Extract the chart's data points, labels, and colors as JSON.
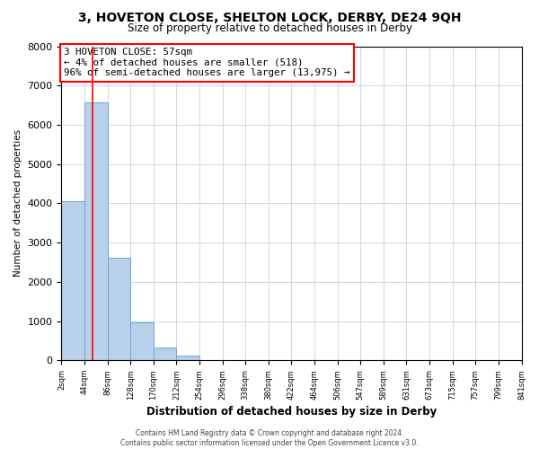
{
  "title": "3, HOVETON CLOSE, SHELTON LOCK, DERBY, DE24 9QH",
  "subtitle": "Size of property relative to detached houses in Derby",
  "xlabel": "Distribution of detached houses by size in Derby",
  "ylabel": "Number of detached properties",
  "bar_values": [
    4050,
    6580,
    2620,
    960,
    330,
    120,
    0,
    0,
    0,
    0,
    0,
    0,
    0,
    0,
    0,
    0,
    0,
    0,
    0,
    0
  ],
  "bar_color": "#b8d0ea",
  "bar_edge_color": "#6fa8d4",
  "tick_labels": [
    "2sqm",
    "44sqm",
    "86sqm",
    "128sqm",
    "170sqm",
    "212sqm",
    "254sqm",
    "296sqm",
    "338sqm",
    "380sqm",
    "422sqm",
    "464sqm",
    "506sqm",
    "547sqm",
    "589sqm",
    "631sqm",
    "673sqm",
    "715sqm",
    "757sqm",
    "799sqm",
    "841sqm"
  ],
  "ylim": [
    0,
    8000
  ],
  "yticks": [
    0,
    1000,
    2000,
    3000,
    4000,
    5000,
    6000,
    7000,
    8000
  ],
  "annotation_title": "3 HOVETON CLOSE: 57sqm",
  "annotation_line1": "← 4% of detached houses are smaller (518)",
  "annotation_line2": "96% of semi-detached houses are larger (13,975) →",
  "red_line_x": 1.35,
  "footer1": "Contains HM Land Registry data © Crown copyright and database right 2024.",
  "footer2": "Contains public sector information licensed under the Open Government Licence v3.0.",
  "background_color": "#ffffff",
  "grid_color": "#ccd6e8"
}
